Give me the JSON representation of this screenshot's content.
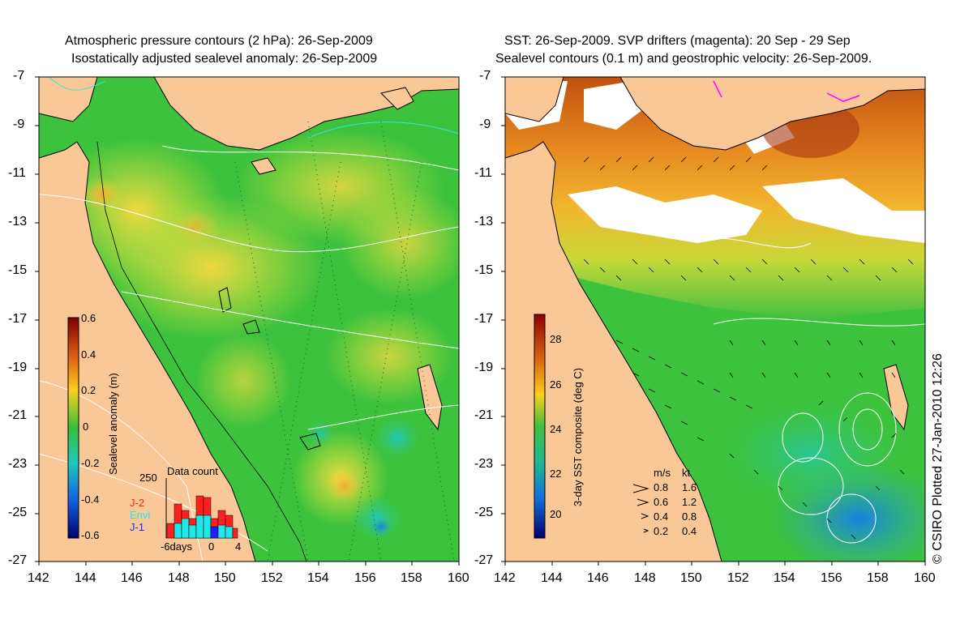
{
  "left_map": {
    "title_line1": "Atmospheric pressure contours (2 hPa): 26-Sep-2009",
    "title_line2": "Isostatically adjusted sealevel anomaly: 26-Sep-2009",
    "colorbar": {
      "label": "Sealevel anomaly (m)",
      "ticks": [
        "0.6",
        "0.4",
        "0.2",
        "0",
        "-0.2",
        "-0.4",
        "-0.6"
      ]
    },
    "data_count": {
      "title": "Data count",
      "max_label": "250",
      "legend": [
        {
          "name": "J-2",
          "color": "#ff2020"
        },
        {
          "name": "Envi",
          "color": "#20e8e8"
        },
        {
          "name": "J-1",
          "color": "#2020ff"
        }
      ],
      "x_labels": [
        "-6days",
        "0",
        "4"
      ]
    }
  },
  "right_map": {
    "title_line1": "SST: 26-Sep-2009. SVP drifters (magenta): 20 Sep - 29 Sep",
    "title_line2": "Sealevel contours (0.1 m) and geostrophic velocity: 26-Sep-2009.",
    "colorbar": {
      "label": "3-day SST composite (deg C)",
      "ticks": [
        "28",
        "26",
        "24",
        "22",
        "20"
      ]
    },
    "velocity_legend": {
      "header_ms": "m/s",
      "header_kt": "kt",
      "rows": [
        {
          "ms": "0.8",
          "kt": "1.6"
        },
        {
          "ms": "0.6",
          "kt": "1.2"
        },
        {
          "ms": "0.4",
          "kt": "0.8"
        },
        {
          "ms": "0.2",
          "kt": "0.4"
        }
      ]
    }
  },
  "axes": {
    "lat_ticks": [
      "-7",
      "-9",
      "-11",
      "-13",
      "-15",
      "-17",
      "-19",
      "-21",
      "-23",
      "-25",
      "-27"
    ],
    "lon_ticks": [
      "142",
      "144",
      "146",
      "148",
      "150",
      "152",
      "154",
      "156",
      "158",
      "160"
    ]
  },
  "credit": "© CSIRO Plotted 27-Jan-2010 12:26",
  "colors": {
    "land": "#fac896",
    "ocean_green": "#3cc23c",
    "anomaly_yellow": "#e8e83c",
    "sst_orange": "#f0a028",
    "sst_cloud": "#ffffff"
  }
}
